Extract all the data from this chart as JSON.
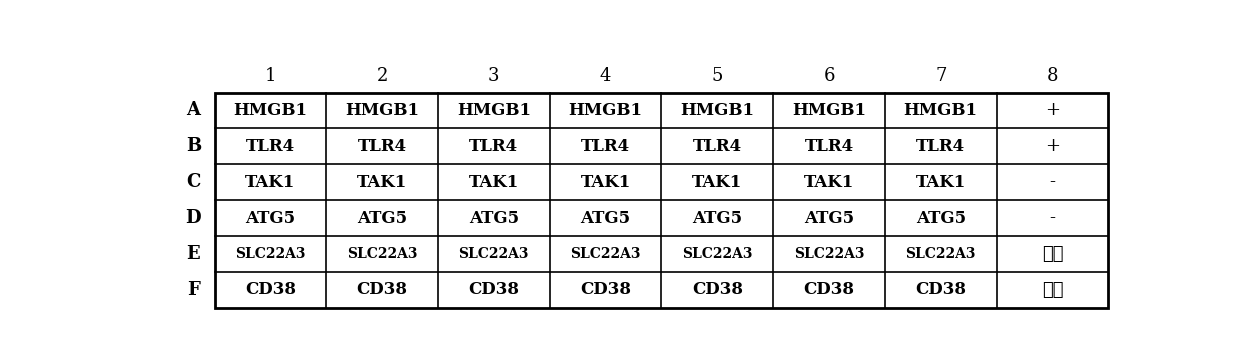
{
  "col_headers": [
    "1",
    "2",
    "3",
    "4",
    "5",
    "6",
    "7",
    "8"
  ],
  "row_headers": [
    "A",
    "B",
    "C",
    "D",
    "E",
    "F"
  ],
  "cell_data": [
    [
      "HMGB1",
      "HMGB1",
      "HMGB1",
      "HMGB1",
      "HMGB1",
      "HMGB1",
      "HMGB1",
      "+"
    ],
    [
      "TLR4",
      "TLR4",
      "TLR4",
      "TLR4",
      "TLR4",
      "TLR4",
      "TLR4",
      "+"
    ],
    [
      "TAK1",
      "TAK1",
      "TAK1",
      "TAK1",
      "TAK1",
      "TAK1",
      "TAK1",
      "-"
    ],
    [
      "ATG5",
      "ATG5",
      "ATG5",
      "ATG5",
      "ATG5",
      "ATG5",
      "ATG5",
      "-"
    ],
    [
      "SLC22A3",
      "SLC22A3",
      "SLC22A3",
      "SLC22A3",
      "SLC22A3",
      "SLC22A3",
      "SLC22A3",
      "空白"
    ],
    [
      "CD38",
      "CD38",
      "CD38",
      "CD38",
      "CD38",
      "CD38",
      "CD38",
      "空白"
    ]
  ],
  "bg_color": "#ffffff",
  "border_color": "#000000",
  "text_color": "#000000",
  "fig_width": 12.4,
  "fig_height": 3.58,
  "dpi": 100
}
